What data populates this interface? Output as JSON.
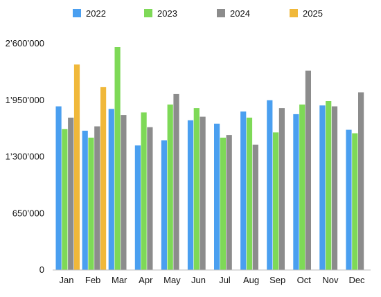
{
  "chart_data": {
    "type": "bar",
    "categories": [
      "Jan",
      "Feb",
      "Mar",
      "Apr",
      "May",
      "Jun",
      "Jul",
      "Aug",
      "Sep",
      "Oct",
      "Nov",
      "Dec"
    ],
    "series": [
      {
        "name": "2022",
        "color": "#4a9ff0",
        "values": [
          1880000,
          1600000,
          1850000,
          1430000,
          1490000,
          1720000,
          1680000,
          1820000,
          1950000,
          1790000,
          1890000,
          1610000
        ]
      },
      {
        "name": "2023",
        "color": "#7ed957",
        "values": [
          1620000,
          1520000,
          2560000,
          1810000,
          1900000,
          1860000,
          1520000,
          1750000,
          1580000,
          1900000,
          1940000,
          1570000
        ]
      },
      {
        "name": "2024",
        "color": "#8c8c8c",
        "values": [
          1750000,
          1650000,
          1780000,
          1640000,
          2020000,
          1760000,
          1550000,
          1440000,
          1860000,
          2290000,
          1880000,
          2040000
        ]
      },
      {
        "name": "2025",
        "color": "#f0b83a",
        "values": [
          2360000,
          2100000,
          null,
          null,
          null,
          null,
          null,
          null,
          null,
          null,
          null,
          null
        ]
      }
    ],
    "yticks": [
      0,
      650000,
      1300000,
      1950000,
      2600000
    ],
    "ytick_labels": [
      "0",
      "650’000",
      "1’300’000",
      "1’950’000",
      "2’600’000"
    ],
    "ylim": [
      0,
      2600000
    ],
    "legend_position": "top",
    "grid": false,
    "title": "",
    "xlabel": "",
    "ylabel": ""
  }
}
